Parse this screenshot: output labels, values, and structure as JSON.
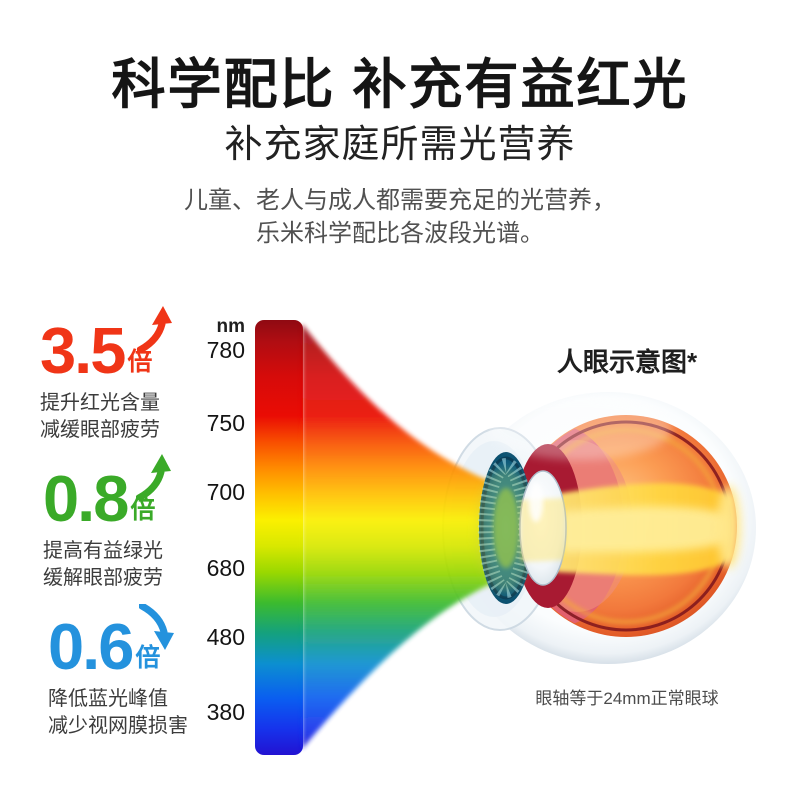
{
  "title": "科学配比 补充有益红光",
  "subtitle": "补充家庭所需光营养",
  "description": {
    "line1": "儿童、老人与成人都需要充足的光营养，",
    "line2": "乐米科学配比各波段光谱。"
  },
  "stats": [
    {
      "value": "3.5",
      "unit": "倍",
      "trend": "up",
      "icon": "trend-up-arrow",
      "color": "#f03517",
      "lines": [
        "提升红光含量",
        "减缓眼部疲劳"
      ]
    },
    {
      "value": "0.8",
      "unit": "倍",
      "trend": "up",
      "icon": "trend-up-arrow",
      "color": "#3aaa28",
      "lines": [
        "提高有益绿光",
        "缓解眼部疲劳"
      ]
    },
    {
      "value": "0.6",
      "unit": "倍",
      "trend": "down",
      "icon": "trend-down-arrow",
      "color": "#2492dd",
      "lines": [
        "降低蓝光峰值",
        "减少视网膜损害"
      ]
    }
  ],
  "spectrum": {
    "unit_label": "nm",
    "ticks": [
      "780",
      "750",
      "700",
      "680",
      "480",
      "380"
    ],
    "gradient": [
      [
        "0",
        "#8f0a12"
      ],
      [
        "0.05",
        "#b00d12"
      ],
      [
        "0.13",
        "#d60b0a"
      ],
      [
        "0.22",
        "#ea0c04"
      ],
      [
        "0.28",
        "#f84e00"
      ],
      [
        "0.34",
        "#ff8a00"
      ],
      [
        "0.40",
        "#ffc000"
      ],
      [
        "0.46",
        "#fbf000"
      ],
      [
        "0.52",
        "#d8e800"
      ],
      [
        "0.58",
        "#9ad800"
      ],
      [
        "0.65",
        "#3cbb2e"
      ],
      [
        "0.72",
        "#14a17e"
      ],
      [
        "0.79",
        "#0c8fd0"
      ],
      [
        "0.87",
        "#0a5ef0"
      ],
      [
        "0.94",
        "#1633ec"
      ],
      [
        "1",
        "#2212d2"
      ]
    ]
  },
  "eye": {
    "label": "人眼示意图*",
    "caption": "眼轴等于24mm正常眼球"
  },
  "colors": {
    "stat-red": "#f03517",
    "stat-green": "#3aaa28",
    "stat-blue": "#2492dd",
    "text-dark": "#151515",
    "text-gray": "#515151"
  }
}
